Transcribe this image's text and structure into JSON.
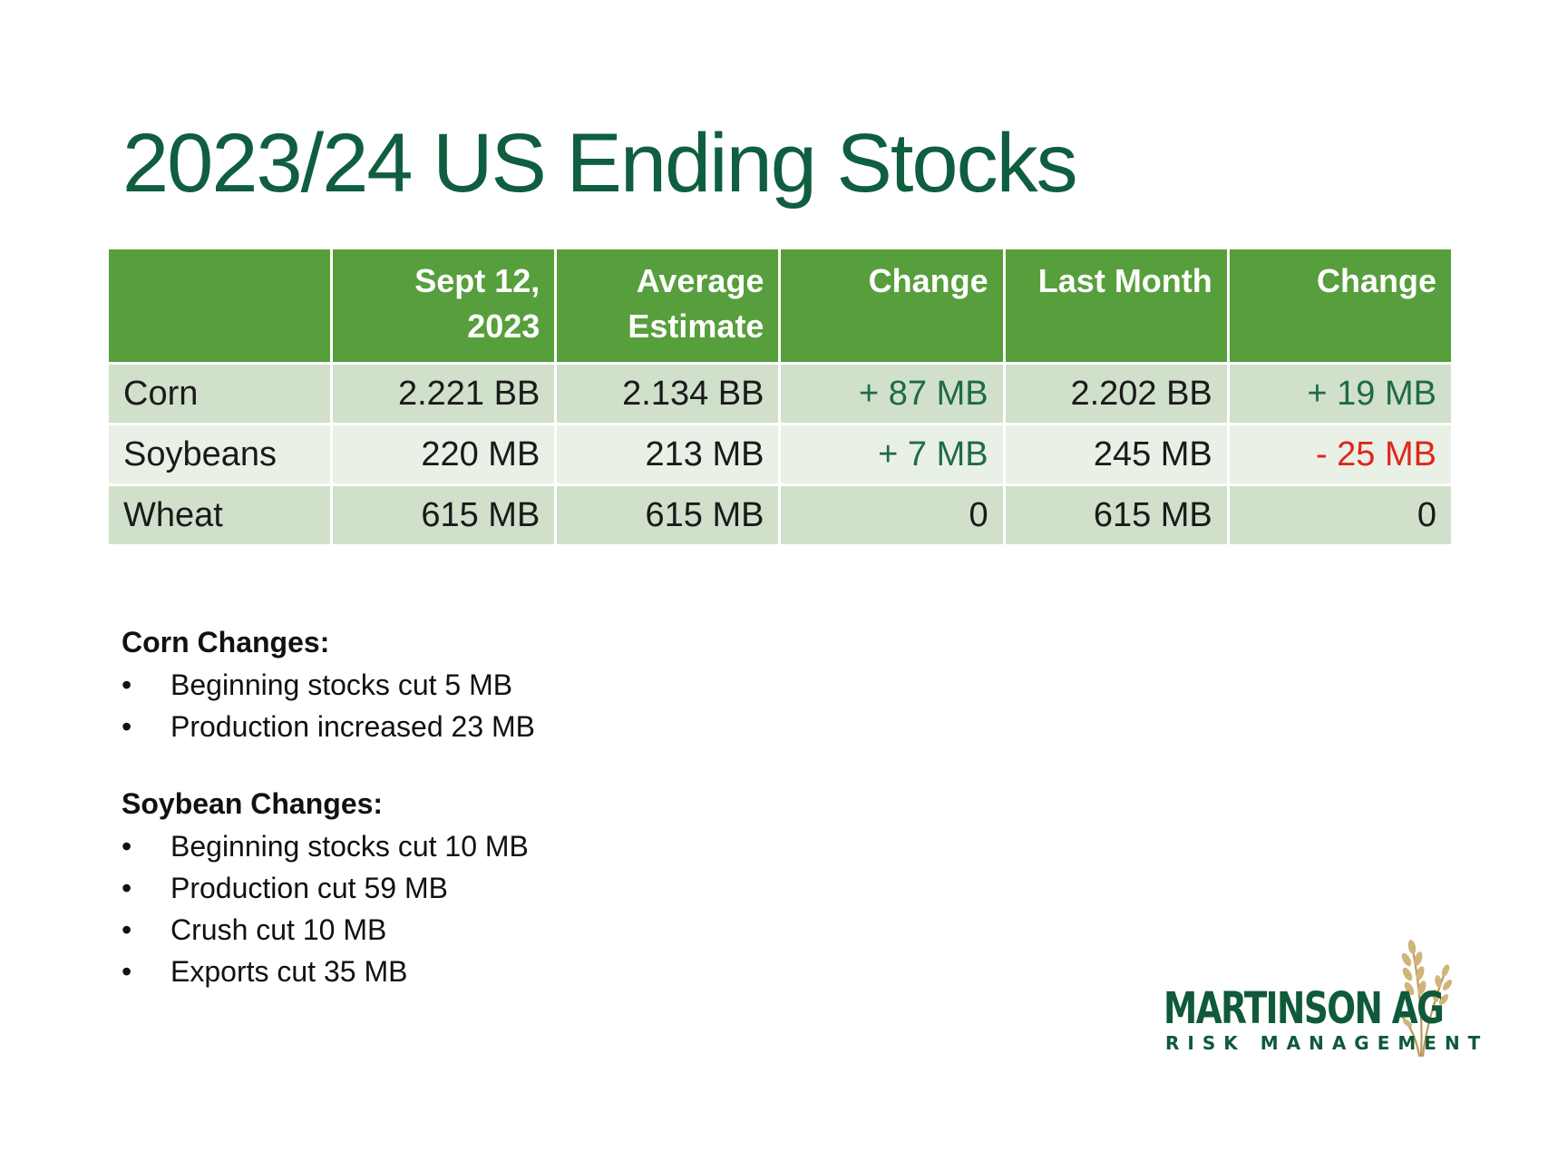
{
  "title": "2023/24 US Ending Stocks",
  "table": {
    "headers": [
      "",
      "Sept 12, 2023",
      "Average Estimate",
      "Change",
      "Last Month",
      "Change"
    ],
    "rows": [
      {
        "commodity": "Corn",
        "sept12": "2.221 BB",
        "avg_estimate": "2.134 BB",
        "change_vs_estimate": "+ 87 MB",
        "last_month": "2.202 BB",
        "change_vs_last_month": "+ 19 MB"
      },
      {
        "commodity": "Soybeans",
        "sept12": "220 MB",
        "avg_estimate": "213 MB",
        "change_vs_estimate": "+ 7 MB",
        "last_month": "245 MB",
        "change_vs_last_month": "- 25 MB"
      },
      {
        "commodity": "Wheat",
        "sept12": "615 MB",
        "avg_estimate": "615 MB",
        "change_vs_estimate": "0",
        "last_month": "615 MB",
        "change_vs_last_month": "0"
      }
    ]
  },
  "notes": {
    "corn": {
      "heading": "Corn Changes:",
      "items": [
        "Beginning stocks cut 5 MB",
        "Production increased 23 MB"
      ]
    },
    "soybean": {
      "heading": "Soybean Changes:",
      "items": [
        "Beginning stocks cut 10 MB",
        "Production cut 59 MB",
        "Crush cut 10 MB",
        "Exports cut 35 MB"
      ]
    },
    "bullet": "•"
  },
  "logo": {
    "name": "MARTINSON AG",
    "tagline": "RISK MANAGEMENT",
    "icon": "wheat-icon"
  },
  "colors": {
    "title": "#0f5e3f",
    "header_bg": "#579e3c",
    "row_dark": "#d0e0cb",
    "row_light": "#e9f0e6",
    "positive": "#1e6b46",
    "negative": "#e0261b"
  }
}
